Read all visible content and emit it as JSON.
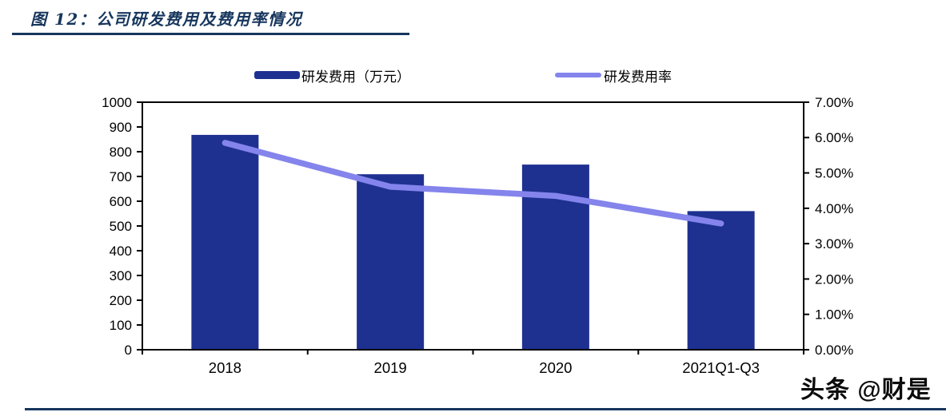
{
  "figure": {
    "title": "图 12：公司研发费用及费用率情况",
    "accent_color": "#17365D"
  },
  "legend": {
    "items": [
      {
        "label": "研发费用（万元）",
        "swatch": "bar",
        "color": "#1E3191"
      },
      {
        "label": "研发费用率",
        "swatch": "line",
        "color": "#8484EC"
      }
    ]
  },
  "chart_data": {
    "type": "combo",
    "categories": [
      "2018",
      "2019",
      "2020",
      "2021Q1-Q3"
    ],
    "series": [
      {
        "name": "研发费用（万元）",
        "type": "bar",
        "axis": "left",
        "color": "#1E3191",
        "values": [
          868,
          709,
          748,
          560
        ]
      },
      {
        "name": "研发费用率",
        "type": "line",
        "axis": "right",
        "color": "#8484EC",
        "unit": "%",
        "values": [
          5.85,
          4.61,
          4.35,
          3.57
        ]
      }
    ],
    "left_axis": {
      "min": 0,
      "max": 1000,
      "step": 100,
      "tick_labels": [
        "1000",
        "900",
        "800",
        "700",
        "600",
        "500",
        "400",
        "300",
        "200",
        "100",
        "0"
      ]
    },
    "right_axis": {
      "min": 0,
      "max": 7,
      "step": 1,
      "tick_labels": [
        "7.00%",
        "6.00%",
        "5.00%",
        "4.00%",
        "3.00%",
        "2.00%",
        "1.00%",
        "0.00%"
      ]
    },
    "grid": false,
    "legend_position": "top",
    "axis_color": "#000000"
  },
  "watermark": {
    "text": "头条 @财是"
  }
}
